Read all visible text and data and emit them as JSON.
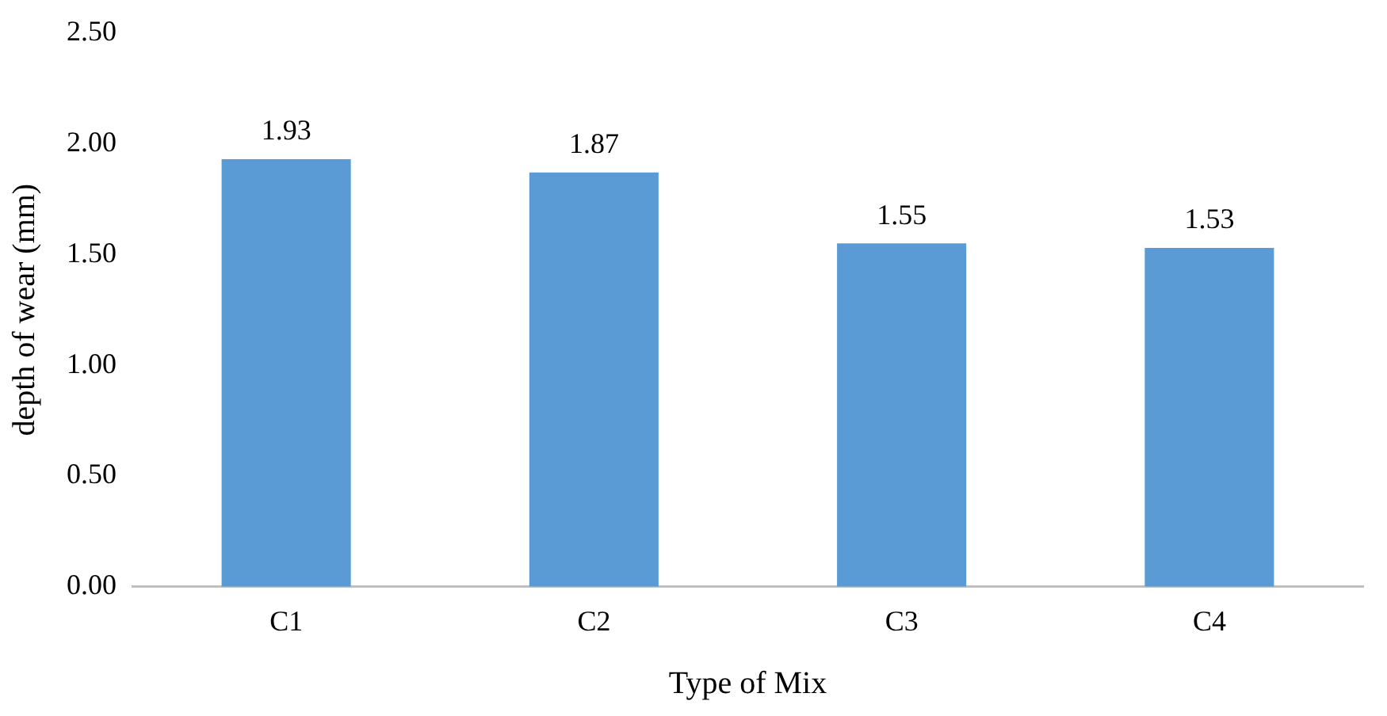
{
  "chart_data": {
    "type": "bar",
    "xlabel": "Type of Mix",
    "ylabel": "depth of wear (mm)",
    "categories": [
      "C1",
      "C2",
      "C3",
      "C4"
    ],
    "values": [
      1.93,
      1.87,
      1.55,
      1.53
    ],
    "color": "#5b9bd5",
    "ylim": [
      0,
      2.5
    ],
    "yticks": [
      {
        "value": 0,
        "label": "0.00"
      },
      {
        "value": 0.5,
        "label": "0.50"
      },
      {
        "value": 1,
        "label": "1.00"
      },
      {
        "value": 1.5,
        "label": "1.50"
      },
      {
        "value": 2,
        "label": "2.00"
      },
      {
        "value": 2.5,
        "label": "2.50"
      }
    ],
    "data_labels": true,
    "grid": false,
    "legend": false
  }
}
